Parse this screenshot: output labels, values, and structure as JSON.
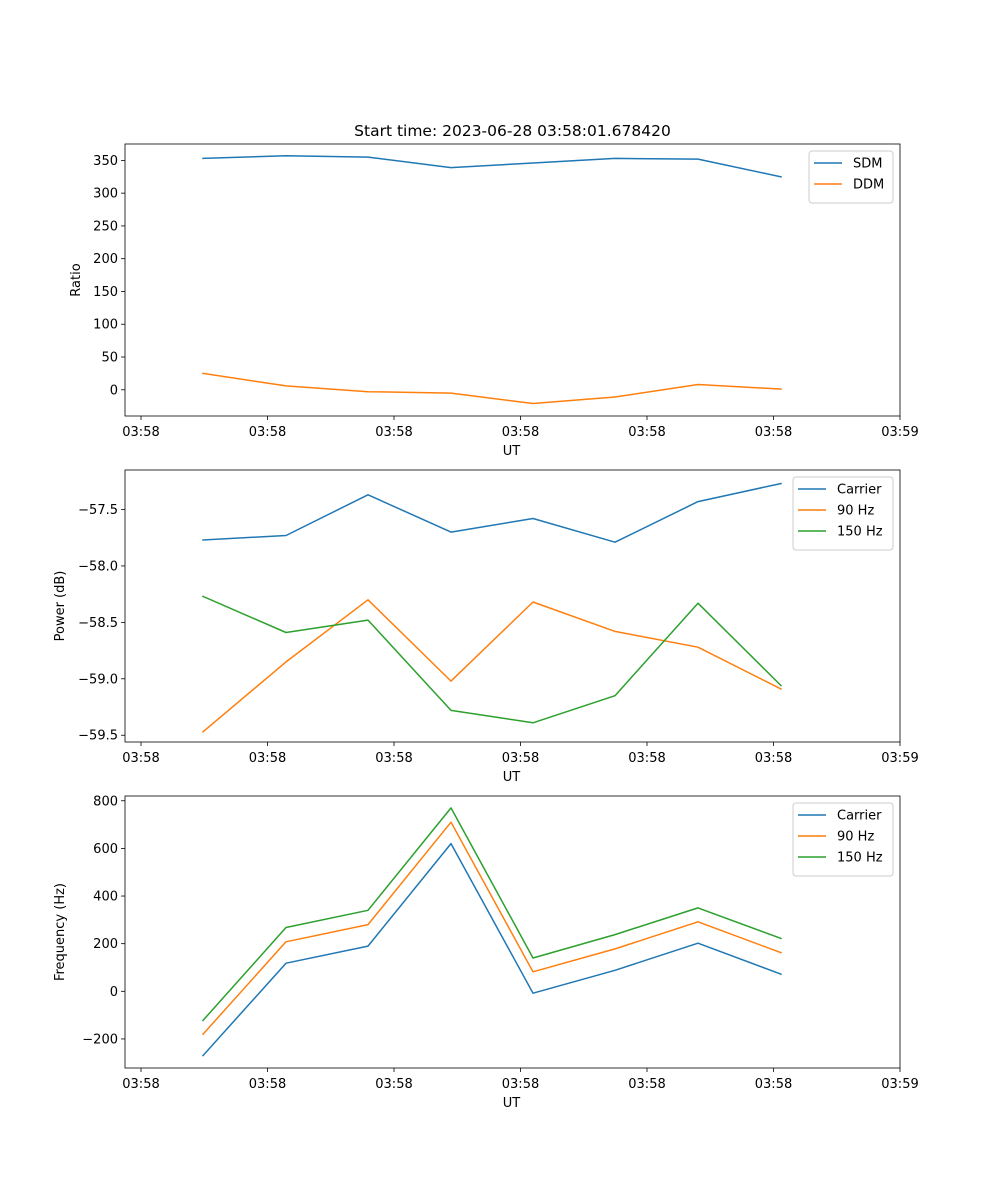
{
  "chart_data": [
    {
      "type": "line",
      "title": "Start time: 2023-06-28 03:58:01.678420",
      "xlabel": "UT",
      "ylabel": "Ratio",
      "xtick_labels": [
        "03:58",
        "03:58",
        "03:58",
        "03:58",
        "03:58",
        "03:58",
        "03:58"
      ],
      "xtick_labels_right": "03:59",
      "yticks": [
        0,
        50,
        100,
        150,
        200,
        250,
        300,
        350
      ],
      "ylim": [
        -40,
        375
      ],
      "legend_position": "top-right",
      "series": [
        {
          "name": "SDM",
          "color": "#1f77b4",
          "values": [
            353,
            357,
            355,
            339,
            346,
            353,
            352,
            325
          ]
        },
        {
          "name": "DDM",
          "color": "#ff7f0e",
          "values": [
            25,
            6,
            -3,
            -5,
            -21,
            -11,
            8,
            1
          ]
        }
      ]
    },
    {
      "type": "line",
      "title": "",
      "xlabel": "UT",
      "ylabel": "Power (dB)",
      "xtick_labels": [
        "03:58",
        "03:58",
        "03:58",
        "03:58",
        "03:58",
        "03:58",
        "03:58"
      ],
      "xtick_labels_right": "03:59",
      "yticks": [
        -59.5,
        -59.0,
        -58.5,
        -58.0,
        -57.5
      ],
      "ytick_labels": [
        "−59.5",
        "−59.0",
        "−58.5",
        "−58.0",
        "−57.5"
      ],
      "ylim": [
        -59.56,
        -57.15
      ],
      "legend_position": "top-right",
      "series": [
        {
          "name": "Carrier",
          "color": "#1f77b4",
          "values": [
            -57.77,
            -57.73,
            -57.37,
            -57.7,
            -57.58,
            -57.79,
            -57.43,
            -57.27
          ]
        },
        {
          "name": "90 Hz",
          "color": "#ff7f0e",
          "values": [
            -59.47,
            -58.85,
            -58.3,
            -59.02,
            -58.32,
            -58.58,
            -58.72,
            -59.09
          ]
        },
        {
          "name": "150 Hz",
          "color": "#2ca02c",
          "values": [
            -58.27,
            -58.59,
            -58.48,
            -59.28,
            -59.39,
            -59.15,
            -58.33,
            -59.06
          ]
        }
      ]
    },
    {
      "type": "line",
      "title": "",
      "xlabel": "UT",
      "ylabel": "Frequency (Hz)",
      "xtick_labels": [
        "03:58",
        "03:58",
        "03:58",
        "03:58",
        "03:58",
        "03:58",
        "03:58"
      ],
      "xtick_labels_right": "03:59",
      "yticks": [
        -200,
        0,
        200,
        400,
        600,
        800
      ],
      "ytick_labels": [
        "−200",
        "0",
        "200",
        "400",
        "600",
        "800"
      ],
      "ylim": [
        -322,
        820
      ],
      "legend_position": "top-right",
      "series": [
        {
          "name": "Carrier",
          "color": "#1f77b4",
          "values": [
            -270,
            118,
            190,
            620,
            -8,
            88,
            202,
            72
          ]
        },
        {
          "name": "90 Hz",
          "color": "#ff7f0e",
          "values": [
            -180,
            208,
            280,
            710,
            82,
            178,
            292,
            162
          ]
        },
        {
          "name": "150 Hz",
          "color": "#2ca02c",
          "values": [
            -122,
            268,
            340,
            770,
            140,
            238,
            350,
            222
          ]
        }
      ]
    }
  ]
}
